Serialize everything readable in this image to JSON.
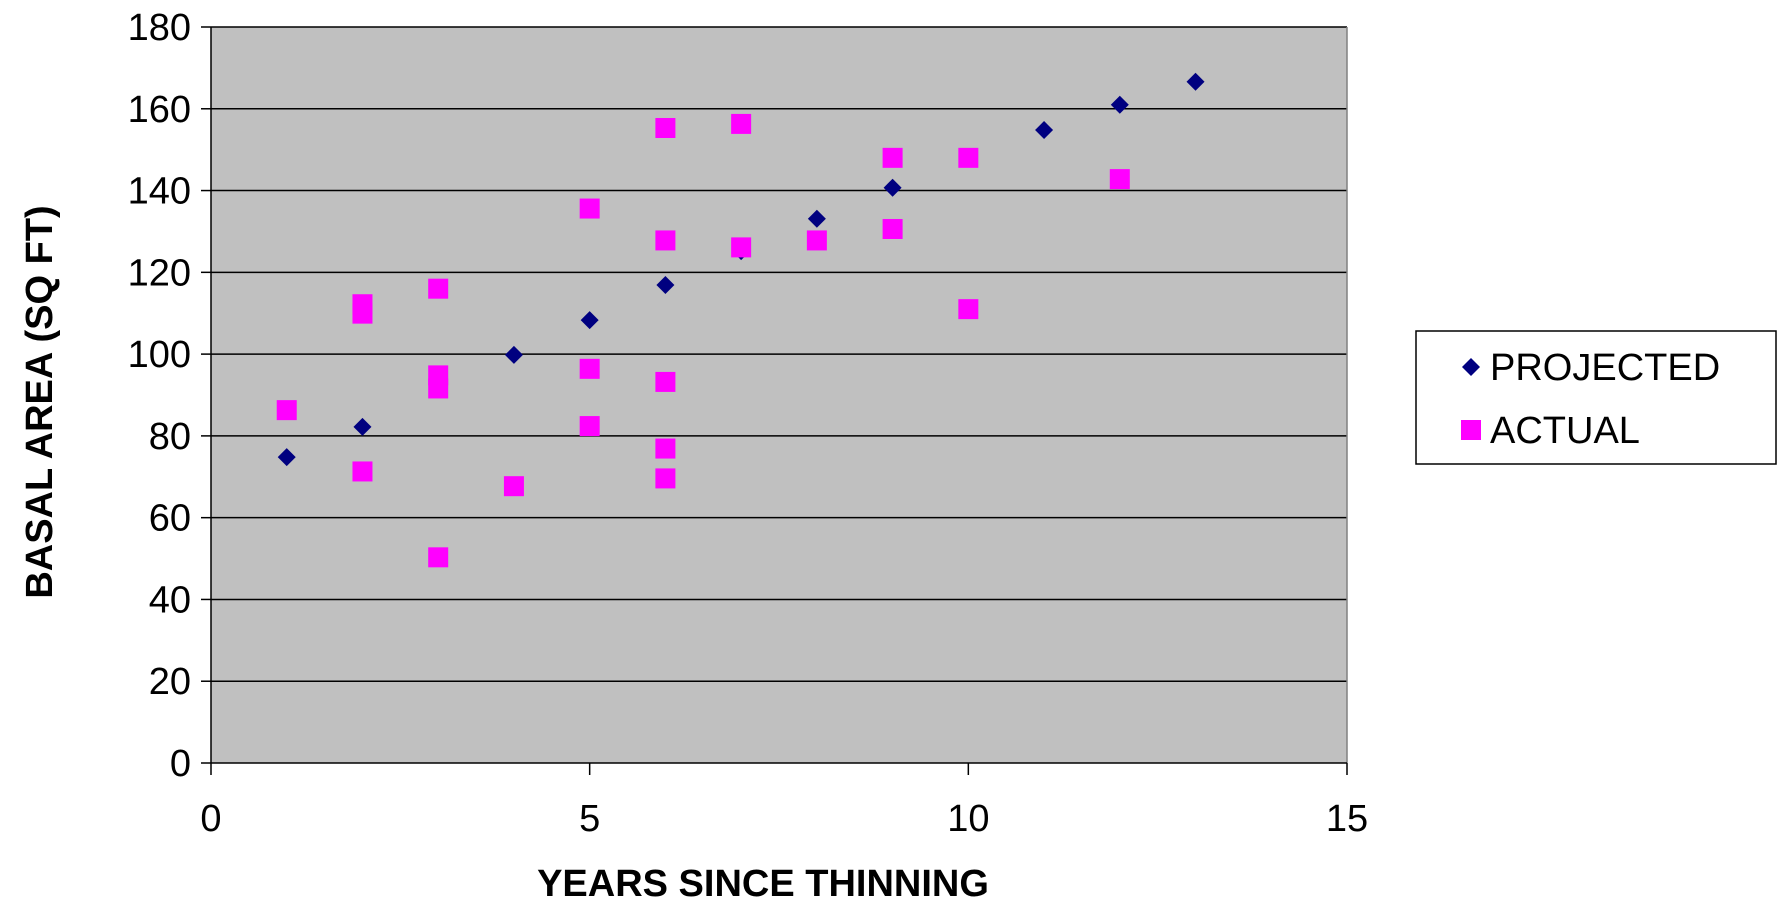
{
  "chart_data": {
    "type": "scatter",
    "xlabel": "YEARS SINCE THINNING",
    "ylabel": "BASAL AREA (SQ FT)",
    "xlim": [
      0,
      15
    ],
    "ylim": [
      0,
      180
    ],
    "x_ticks": [
      0,
      5,
      10,
      15
    ],
    "y_ticks": [
      0,
      20,
      40,
      60,
      80,
      100,
      120,
      140,
      160,
      180
    ],
    "grid": "horizontal",
    "plot_background": "#c0c0c0",
    "legend_position": "right",
    "series": [
      {
        "name": "PROJECTED",
        "marker": "diamond",
        "color": "#000080",
        "points": [
          [
            1,
            74.8
          ],
          [
            2,
            82.2
          ],
          [
            4,
            99.8
          ],
          [
            5,
            108.3
          ],
          [
            6,
            116.9
          ],
          [
            7,
            125.2
          ],
          [
            8,
            133.1
          ],
          [
            9,
            140.7
          ],
          [
            10,
            148.0
          ],
          [
            11,
            154.8
          ],
          [
            12,
            161.0
          ],
          [
            13,
            166.6
          ]
        ]
      },
      {
        "name": "ACTUAL",
        "marker": "square",
        "color": "#ff00ff",
        "points": [
          [
            1,
            86.3
          ],
          [
            2,
            112.2
          ],
          [
            2,
            109.9
          ],
          [
            2,
            71.3
          ],
          [
            3,
            116.0
          ],
          [
            3,
            94.8
          ],
          [
            3,
            91.6
          ],
          [
            3,
            50.3
          ],
          [
            4,
            67.7
          ],
          [
            5,
            135.6
          ],
          [
            5,
            96.4
          ],
          [
            5,
            82.4
          ],
          [
            6,
            155.3
          ],
          [
            6,
            127.8
          ],
          [
            6,
            93.2
          ],
          [
            6,
            76.9
          ],
          [
            6,
            69.6
          ],
          [
            7,
            156.3
          ],
          [
            7,
            126.1
          ],
          [
            8,
            127.8
          ],
          [
            9,
            148.0
          ],
          [
            9,
            130.6
          ],
          [
            10,
            148.0
          ],
          [
            10,
            111.0
          ],
          [
            12,
            142.8
          ]
        ]
      }
    ]
  }
}
